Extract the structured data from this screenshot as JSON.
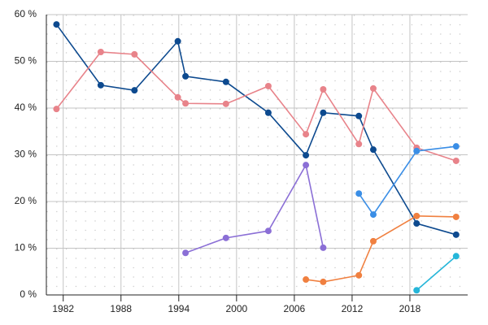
{
  "chart_data": {
    "type": "line",
    "x": [
      1981.3,
      1985.9,
      1989.4,
      1993.9,
      1994.7,
      1998.9,
      2003.3,
      2007.2,
      2009.0,
      2012.7,
      2014.2,
      2018.7,
      2022.8
    ],
    "series": [
      {
        "color": "#0d4a8f",
        "values": [
          57.9,
          44.9,
          43.8,
          54.3,
          46.8,
          45.6,
          39.0,
          29.9,
          39.0,
          38.3,
          31.1,
          15.3,
          12.9
        ]
      },
      {
        "color": "#e8838a",
        "values": [
          39.8,
          52.0,
          51.5,
          42.3,
          41.0,
          40.9,
          44.7,
          34.4,
          44.0,
          32.3,
          44.2,
          31.5,
          28.7
        ]
      },
      {
        "color": "#8b6fd6",
        "values": [
          null,
          null,
          null,
          null,
          9.0,
          12.2,
          13.7,
          27.8,
          10.1,
          null,
          null,
          null,
          null
        ]
      },
      {
        "color": "#f08040",
        "values": [
          null,
          null,
          null,
          null,
          null,
          null,
          null,
          3.3,
          2.8,
          4.2,
          11.5,
          16.9,
          16.7
        ]
      },
      {
        "color": "#3a8ee6",
        "values": [
          null,
          null,
          null,
          null,
          null,
          null,
          null,
          null,
          null,
          21.7,
          17.2,
          30.8,
          31.8
        ]
      },
      {
        "color": "#26b6d9",
        "values": [
          null,
          null,
          null,
          null,
          null,
          null,
          null,
          null,
          null,
          null,
          null,
          1.0,
          8.3
        ]
      }
    ],
    "xlim": [
      1980.25,
      2024
    ],
    "xticks": [
      1982,
      1988,
      1994,
      2000,
      2006,
      2012,
      2018
    ],
    "ylim": [
      0,
      60
    ],
    "yticks": [
      {
        "value": 0,
        "label": "0 %"
      },
      {
        "value": 10,
        "label": "10 %"
      },
      {
        "value": 20,
        "label": "20 %"
      },
      {
        "value": 30,
        "label": "30 %"
      },
      {
        "value": 40,
        "label": "40 %"
      },
      {
        "value": 50,
        "label": "50 %"
      },
      {
        "value": 60,
        "label": "60 %"
      }
    ],
    "grid": true
  }
}
